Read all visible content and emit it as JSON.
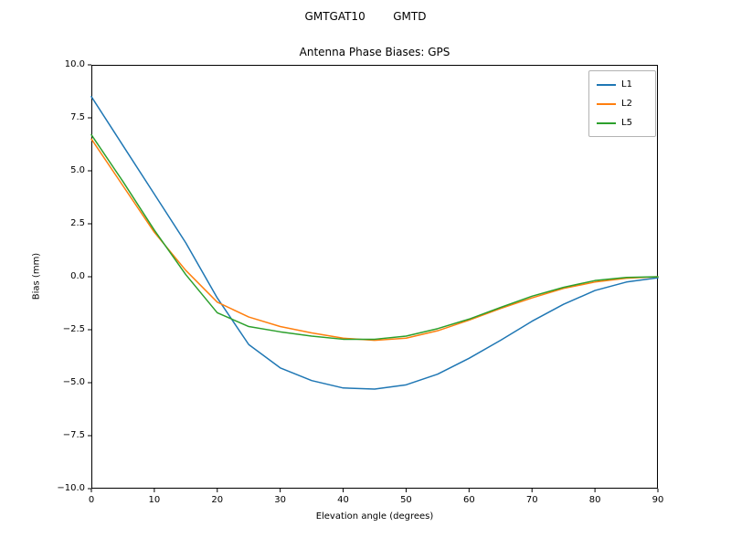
{
  "figure": {
    "suptitle": "GMTGAT10        GMTD"
  },
  "chart_data": {
    "type": "line",
    "title": "Antenna Phase Biases: GPS",
    "xlabel": "Elevation angle (degrees)",
    "ylabel": "Bias (mm)",
    "xlim": [
      0,
      90
    ],
    "ylim": [
      -10,
      10
    ],
    "grid": false,
    "legend_position": "upper right",
    "xticks": [
      0,
      10,
      20,
      30,
      40,
      50,
      60,
      70,
      80,
      90
    ],
    "xtick_labels": [
      "0",
      "10",
      "20",
      "30",
      "40",
      "50",
      "60",
      "70",
      "80",
      "90"
    ],
    "yticks": [
      -10.0,
      -7.5,
      -5.0,
      -2.5,
      0.0,
      2.5,
      5.0,
      7.5,
      10.0
    ],
    "ytick_labels": [
      "−10.0",
      "−7.5",
      "−5.0",
      "−2.5",
      "0.0",
      "2.5",
      "5.0",
      "7.5",
      "10.0"
    ],
    "x": [
      0,
      5,
      10,
      15,
      20,
      25,
      30,
      35,
      40,
      45,
      50,
      55,
      60,
      65,
      70,
      75,
      80,
      85,
      90
    ],
    "series": [
      {
        "name": "L1",
        "color": "#1f77b4",
        "values": [
          8.5,
          6.2,
          3.9,
          1.6,
          -1.0,
          -3.2,
          -4.3,
          -4.9,
          -5.25,
          -5.3,
          -5.1,
          -4.6,
          -3.85,
          -3.0,
          -2.1,
          -1.3,
          -0.65,
          -0.25,
          -0.05
        ]
      },
      {
        "name": "L2",
        "color": "#ff7f0e",
        "values": [
          6.5,
          4.3,
          2.1,
          0.3,
          -1.2,
          -1.9,
          -2.35,
          -2.65,
          -2.9,
          -3.0,
          -2.9,
          -2.55,
          -2.05,
          -1.5,
          -1.0,
          -0.55,
          -0.25,
          -0.07,
          0.0
        ]
      },
      {
        "name": "L5",
        "color": "#2ca02c",
        "values": [
          6.7,
          4.5,
          2.2,
          0.1,
          -1.7,
          -2.35,
          -2.6,
          -2.8,
          -2.95,
          -2.95,
          -2.8,
          -2.45,
          -2.0,
          -1.45,
          -0.92,
          -0.5,
          -0.18,
          -0.03,
          0.0
        ]
      }
    ]
  }
}
